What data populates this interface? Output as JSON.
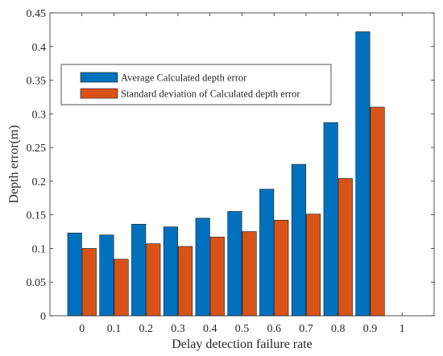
{
  "chart_data": {
    "type": "bar",
    "xlabel": "Delay detection failure rate",
    "ylabel": "Depth error(m)",
    "categories": [
      "0",
      "0.1",
      "0.2",
      "0.3",
      "0.4",
      "0.5",
      "0.6",
      "0.7",
      "0.8",
      "0.9"
    ],
    "x_ticks": [
      "0",
      "0.1",
      "0.2",
      "0.3",
      "0.4",
      "0.5",
      "0.6",
      "0.7",
      "0.8",
      "0.9",
      "1"
    ],
    "y_ticks": [
      "0",
      "0.05",
      "0.1",
      "0.15",
      "0.2",
      "0.25",
      "0.3",
      "0.35",
      "0.4",
      "0.45"
    ],
    "xlim": [
      -0.1,
      1.1
    ],
    "ylim": [
      0,
      0.45
    ],
    "grid": false,
    "legend_position": "upper-left",
    "series": [
      {
        "name": "Average Calculated depth error",
        "color": "#0072BD",
        "values": [
          0.123,
          0.12,
          0.136,
          0.132,
          0.145,
          0.155,
          0.188,
          0.225,
          0.287,
          0.422
        ]
      },
      {
        "name": "Standard deviation of Calculated depth error",
        "color": "#D95319",
        "values": [
          0.1,
          0.084,
          0.107,
          0.103,
          0.117,
          0.125,
          0.142,
          0.151,
          0.204,
          0.31
        ]
      }
    ]
  }
}
